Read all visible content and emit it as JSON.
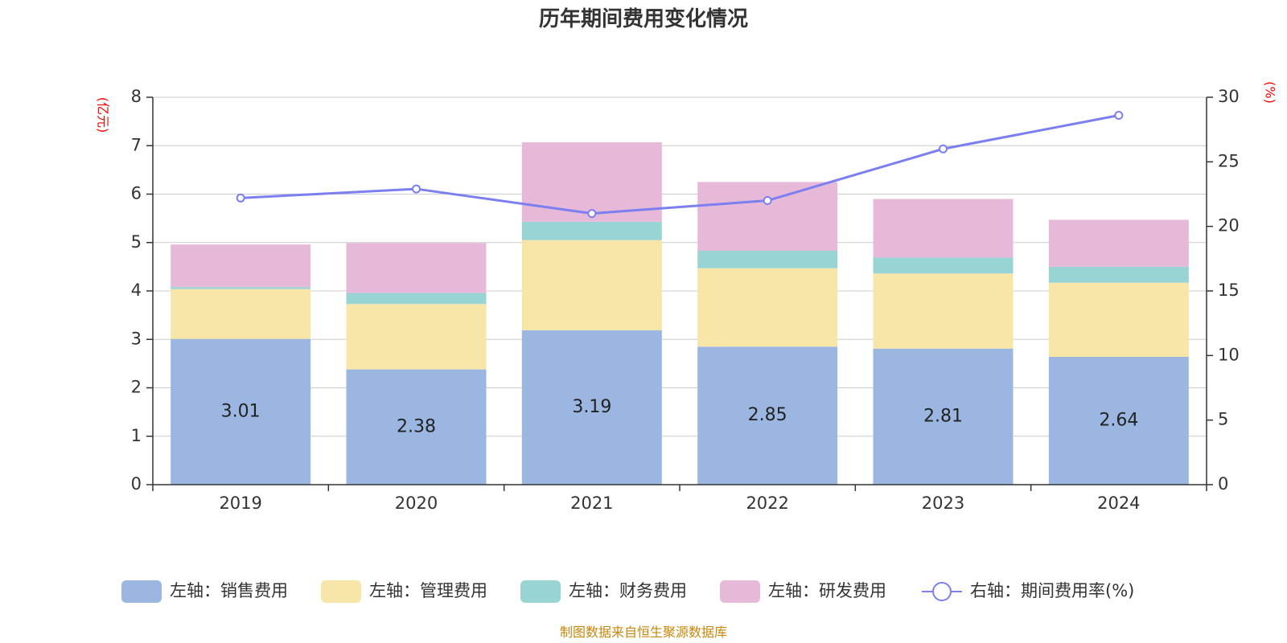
{
  "chart_data": {
    "type": "bar",
    "stacked": true,
    "title": "历年期间费用变化情况",
    "categories": [
      "2019",
      "2020",
      "2021",
      "2022",
      "2023",
      "2024"
    ],
    "y_left": {
      "unit": "(亿元)",
      "range": [
        0,
        8
      ],
      "ticks": [
        0,
        1,
        2,
        3,
        4,
        5,
        6,
        7,
        8
      ]
    },
    "y_right": {
      "unit": "(%)",
      "range": [
        0,
        30
      ],
      "ticks": [
        0,
        5,
        10,
        15,
        20,
        25,
        30
      ]
    },
    "grid": true,
    "legend_position": "bottom",
    "series": [
      {
        "name": "左轴：销售费用",
        "axis": "left",
        "color": "#9bb7e1",
        "values": [
          3.01,
          2.38,
          3.19,
          2.85,
          2.81,
          2.64
        ],
        "show_labels": true
      },
      {
        "name": "左轴：管理费用",
        "axis": "left",
        "color": "#f7e6a7",
        "values": [
          1.03,
          1.35,
          1.86,
          1.62,
          1.55,
          1.53
        ],
        "show_labels": false
      },
      {
        "name": "左轴：财务费用",
        "axis": "left",
        "color": "#98d4d4",
        "values": [
          0.04,
          0.23,
          0.38,
          0.36,
          0.33,
          0.33
        ],
        "show_labels": false
      },
      {
        "name": "左轴：研发费用",
        "axis": "left",
        "color": "#e7b9d9",
        "values": [
          0.88,
          1.03,
          1.64,
          1.42,
          1.21,
          0.97
        ],
        "show_labels": false
      },
      {
        "name": "右轴：期间费用率(%)",
        "axis": "right",
        "type": "line",
        "color": "#7b7ff0",
        "values": [
          22.2,
          22.9,
          21.0,
          22.0,
          26.0,
          28.6
        ]
      }
    ],
    "source": "制图数据来自恒生聚源数据库"
  }
}
